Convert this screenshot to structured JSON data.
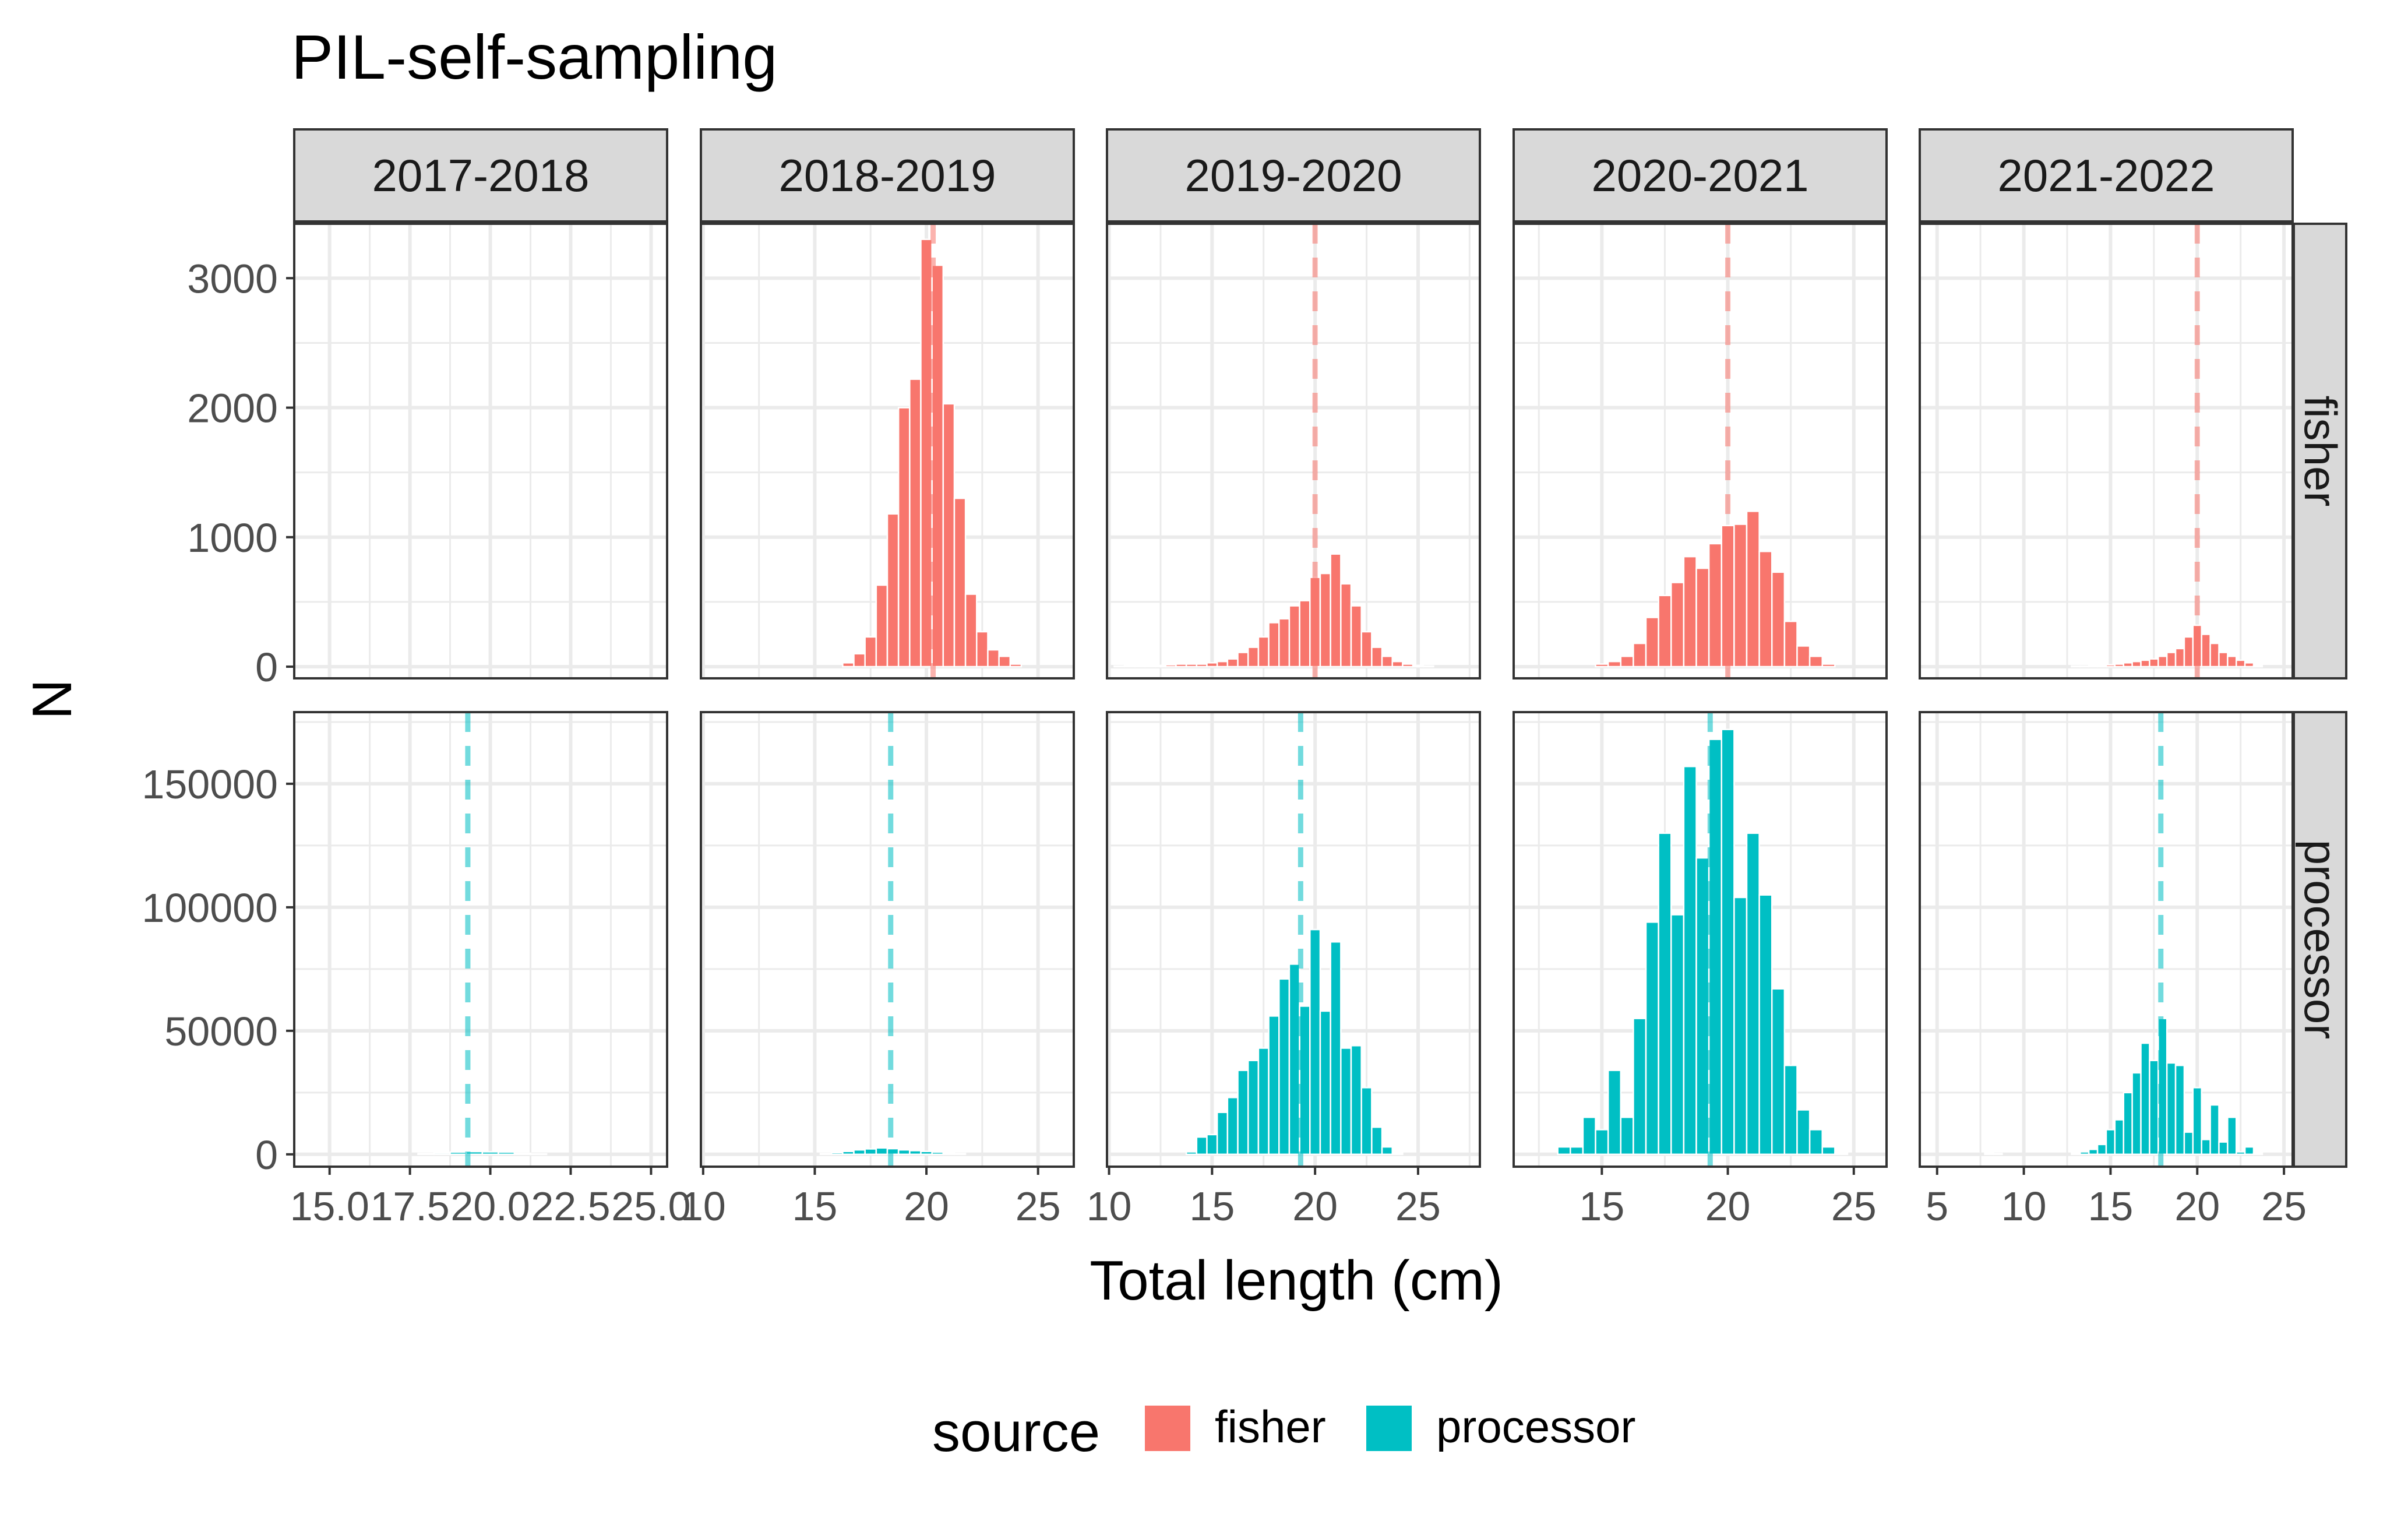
{
  "chart_data": {
    "type": "bar",
    "title": "PIL-self-sampling",
    "xlabel": "Total length (cm)",
    "ylabel": "N",
    "grid": true,
    "legend_position": "bottom",
    "legend": {
      "title": "source",
      "entries": [
        {
          "name": "fisher",
          "color": "#F8766D"
        },
        {
          "name": "processor",
          "color": "#00BFC4"
        }
      ]
    },
    "colors": {
      "fisher": "#F8766D",
      "processor": "#00BFC4",
      "strip_bg": "#D9D9D9",
      "grid": "#EBEBEB",
      "border": "#333333"
    },
    "rows": [
      {
        "label": "fisher",
        "ylim": [
          -90,
          3420
        ],
        "yticks": [
          0,
          1000,
          2000,
          3000
        ],
        "ytick_labels": [
          "0",
          "1000",
          "2000",
          "3000"
        ]
      },
      {
        "label": "processor",
        "ylim": [
          -5000,
          179000
        ],
        "yticks": [
          0,
          50000,
          100000,
          150000
        ],
        "ytick_labels": [
          "0",
          "50000",
          "100000",
          "150000"
        ]
      }
    ],
    "panels": [
      {
        "label": "2017-2018",
        "xlim": [
          13.9,
          25.5
        ],
        "xticks": [
          15,
          17.5,
          20,
          22.5,
          25
        ],
        "xtick_labels": [
          "15.0",
          "17.5",
          "20.0",
          "22.5",
          "25.0"
        ],
        "bin_width": 0.5,
        "fisher": {
          "mean": null,
          "bins": []
        },
        "processor": {
          "mean": 19.3,
          "bins": [
            {
              "x": 18.0,
              "n": 300
            },
            {
              "x": 18.5,
              "n": 600
            },
            {
              "x": 19.0,
              "n": 900
            },
            {
              "x": 19.5,
              "n": 1100
            },
            {
              "x": 20.0,
              "n": 1000
            },
            {
              "x": 20.5,
              "n": 900
            },
            {
              "x": 21.0,
              "n": 400
            },
            {
              "x": 21.5,
              "n": 200
            }
          ]
        }
      },
      {
        "label": "2018-2019",
        "xlim": [
          9.9,
          26.6
        ],
        "xticks": [
          10,
          15,
          20,
          25
        ],
        "xtick_labels": [
          "10",
          "15",
          "20",
          "25"
        ],
        "bin_width": 0.5,
        "fisher": {
          "mean": 20.3,
          "bins": [
            {
              "x": 16.5,
              "n": 30
            },
            {
              "x": 17.0,
              "n": 100
            },
            {
              "x": 17.5,
              "n": 230
            },
            {
              "x": 18.0,
              "n": 630
            },
            {
              "x": 18.5,
              "n": 1180
            },
            {
              "x": 19.0,
              "n": 2000
            },
            {
              "x": 19.5,
              "n": 2220
            },
            {
              "x": 20.0,
              "n": 3300
            },
            {
              "x": 20.5,
              "n": 3100
            },
            {
              "x": 21.0,
              "n": 2030
            },
            {
              "x": 21.5,
              "n": 1300
            },
            {
              "x": 22.0,
              "n": 560
            },
            {
              "x": 22.5,
              "n": 270
            },
            {
              "x": 23.0,
              "n": 130
            },
            {
              "x": 23.5,
              "n": 80
            },
            {
              "x": 24.0,
              "n": 20
            }
          ]
        },
        "processor": {
          "mean": 18.4,
          "bins": [
            {
              "x": 15.5,
              "n": 300
            },
            {
              "x": 16.0,
              "n": 700
            },
            {
              "x": 16.5,
              "n": 1200
            },
            {
              "x": 17.0,
              "n": 1800
            },
            {
              "x": 17.5,
              "n": 2200
            },
            {
              "x": 18.0,
              "n": 2600
            },
            {
              "x": 18.5,
              "n": 2300
            },
            {
              "x": 19.0,
              "n": 1800
            },
            {
              "x": 19.5,
              "n": 1500
            },
            {
              "x": 20.0,
              "n": 1200
            },
            {
              "x": 20.5,
              "n": 900
            },
            {
              "x": 21.0,
              "n": 500
            },
            {
              "x": 21.5,
              "n": 300
            }
          ]
        }
      },
      {
        "label": "2019-2020",
        "xlim": [
          9.9,
          28.0
        ],
        "xticks": [
          10,
          15,
          20,
          25
        ],
        "xtick_labels": [
          "10",
          "15",
          "20",
          "25"
        ],
        "bin_width": 0.5,
        "fisher": {
          "mean": 20.0,
          "bins": [
            {
              "x": 10.5,
              "n": 5
            },
            {
              "x": 11.0,
              "n": 10
            },
            {
              "x": 11.5,
              "n": 10
            },
            {
              "x": 12.0,
              "n": 10
            },
            {
              "x": 12.5,
              "n": 10
            },
            {
              "x": 13.0,
              "n": 15
            },
            {
              "x": 13.5,
              "n": 20
            },
            {
              "x": 14.0,
              "n": 20
            },
            {
              "x": 14.5,
              "n": 20
            },
            {
              "x": 15.0,
              "n": 30
            },
            {
              "x": 15.5,
              "n": 40
            },
            {
              "x": 16.0,
              "n": 60
            },
            {
              "x": 16.5,
              "n": 110
            },
            {
              "x": 17.0,
              "n": 150
            },
            {
              "x": 17.5,
              "n": 230
            },
            {
              "x": 18.0,
              "n": 340
            },
            {
              "x": 18.5,
              "n": 370
            },
            {
              "x": 19.0,
              "n": 470
            },
            {
              "x": 19.5,
              "n": 510
            },
            {
              "x": 20.0,
              "n": 690
            },
            {
              "x": 20.5,
              "n": 720
            },
            {
              "x": 21.0,
              "n": 870
            },
            {
              "x": 21.5,
              "n": 640
            },
            {
              "x": 22.0,
              "n": 470
            },
            {
              "x": 22.5,
              "n": 270
            },
            {
              "x": 23.0,
              "n": 150
            },
            {
              "x": 23.5,
              "n": 80
            },
            {
              "x": 24.0,
              "n": 40
            },
            {
              "x": 24.5,
              "n": 20
            },
            {
              "x": 25.0,
              "n": 10
            },
            {
              "x": 25.5,
              "n": 5
            }
          ]
        },
        "processor": {
          "mean": 19.3,
          "bins": [
            {
              "x": 14.0,
              "n": 1000
            },
            {
              "x": 14.5,
              "n": 7000
            },
            {
              "x": 15.0,
              "n": 8000
            },
            {
              "x": 15.5,
              "n": 17000
            },
            {
              "x": 16.0,
              "n": 23000
            },
            {
              "x": 16.5,
              "n": 34000
            },
            {
              "x": 17.0,
              "n": 38000
            },
            {
              "x": 17.5,
              "n": 43000
            },
            {
              "x": 18.0,
              "n": 56000
            },
            {
              "x": 18.5,
              "n": 71000
            },
            {
              "x": 19.0,
              "n": 77000
            },
            {
              "x": 19.5,
              "n": 60000
            },
            {
              "x": 20.0,
              "n": 91000
            },
            {
              "x": 20.5,
              "n": 58000
            },
            {
              "x": 21.0,
              "n": 86000
            },
            {
              "x": 21.5,
              "n": 43000
            },
            {
              "x": 22.0,
              "n": 44000
            },
            {
              "x": 22.5,
              "n": 27000
            },
            {
              "x": 23.0,
              "n": 11000
            },
            {
              "x": 23.5,
              "n": 3000
            },
            {
              "x": 24.0,
              "n": 500
            }
          ]
        }
      },
      {
        "label": "2020-2021",
        "xlim": [
          11.5,
          26.3
        ],
        "xticks": [
          15,
          20,
          25
        ],
        "xtick_labels": [
          "15",
          "20",
          "25"
        ],
        "bin_width": 0.5,
        "fisher": {
          "mean": 20.0,
          "bins": [
            {
              "x": 15.0,
              "n": 20
            },
            {
              "x": 15.5,
              "n": 40
            },
            {
              "x": 16.0,
              "n": 80
            },
            {
              "x": 16.5,
              "n": 180
            },
            {
              "x": 17.0,
              "n": 380
            },
            {
              "x": 17.5,
              "n": 550
            },
            {
              "x": 18.0,
              "n": 650
            },
            {
              "x": 18.5,
              "n": 850
            },
            {
              "x": 19.0,
              "n": 760
            },
            {
              "x": 19.5,
              "n": 950
            },
            {
              "x": 20.0,
              "n": 1090
            },
            {
              "x": 20.5,
              "n": 1100
            },
            {
              "x": 21.0,
              "n": 1200
            },
            {
              "x": 21.5,
              "n": 890
            },
            {
              "x": 22.0,
              "n": 730
            },
            {
              "x": 22.5,
              "n": 350
            },
            {
              "x": 23.0,
              "n": 160
            },
            {
              "x": 23.5,
              "n": 80
            },
            {
              "x": 24.0,
              "n": 20
            }
          ]
        },
        "processor": {
          "mean": 19.3,
          "bins": [
            {
              "x": 13.5,
              "n": 3000
            },
            {
              "x": 14.0,
              "n": 3000
            },
            {
              "x": 14.5,
              "n": 15000
            },
            {
              "x": 15.0,
              "n": 10000
            },
            {
              "x": 15.5,
              "n": 34000
            },
            {
              "x": 16.0,
              "n": 15000
            },
            {
              "x": 16.5,
              "n": 55000
            },
            {
              "x": 17.0,
              "n": 94000
            },
            {
              "x": 17.5,
              "n": 130000
            },
            {
              "x": 18.0,
              "n": 97000
            },
            {
              "x": 18.5,
              "n": 157000
            },
            {
              "x": 19.0,
              "n": 120000
            },
            {
              "x": 19.5,
              "n": 168000
            },
            {
              "x": 20.0,
              "n": 172000
            },
            {
              "x": 20.5,
              "n": 104000
            },
            {
              "x": 21.0,
              "n": 130000
            },
            {
              "x": 21.5,
              "n": 105000
            },
            {
              "x": 22.0,
              "n": 67000
            },
            {
              "x": 22.5,
              "n": 36000
            },
            {
              "x": 23.0,
              "n": 18000
            },
            {
              "x": 23.5,
              "n": 10000
            },
            {
              "x": 24.0,
              "n": 3000
            },
            {
              "x": 24.5,
              "n": 500
            }
          ]
        }
      },
      {
        "label": "2021-2022",
        "xlim": [
          4.0,
          25.5
        ],
        "xticks": [
          5,
          10,
          15,
          20,
          25
        ],
        "xtick_labels": [
          "5",
          "10",
          "15",
          "20",
          "25"
        ],
        "bin_width": 0.5,
        "fisher": {
          "mean": 20.0,
          "bins": [
            {
              "x": 13.0,
              "n": 5
            },
            {
              "x": 13.5,
              "n": 5
            },
            {
              "x": 14.0,
              "n": 10
            },
            {
              "x": 14.5,
              "n": 10
            },
            {
              "x": 15.0,
              "n": 15
            },
            {
              "x": 15.5,
              "n": 20
            },
            {
              "x": 16.0,
              "n": 30
            },
            {
              "x": 16.5,
              "n": 40
            },
            {
              "x": 17.0,
              "n": 50
            },
            {
              "x": 17.5,
              "n": 60
            },
            {
              "x": 18.0,
              "n": 80
            },
            {
              "x": 18.5,
              "n": 110
            },
            {
              "x": 19.0,
              "n": 140
            },
            {
              "x": 19.5,
              "n": 230
            },
            {
              "x": 20.0,
              "n": 320
            },
            {
              "x": 20.5,
              "n": 250
            },
            {
              "x": 21.0,
              "n": 180
            },
            {
              "x": 21.5,
              "n": 110
            },
            {
              "x": 22.0,
              "n": 80
            },
            {
              "x": 22.5,
              "n": 50
            },
            {
              "x": 23.0,
              "n": 30
            },
            {
              "x": 23.5,
              "n": 10
            }
          ]
        },
        "processor": {
          "mean": 17.9,
          "bins": [
            {
              "x": 8.0,
              "n": 500
            },
            {
              "x": 8.5,
              "n": 300
            },
            {
              "x": 13.0,
              "n": 500
            },
            {
              "x": 13.5,
              "n": 1000
            },
            {
              "x": 14.0,
              "n": 2000
            },
            {
              "x": 14.5,
              "n": 4000
            },
            {
              "x": 15.0,
              "n": 10000
            },
            {
              "x": 15.5,
              "n": 14000
            },
            {
              "x": 16.0,
              "n": 25000
            },
            {
              "x": 16.5,
              "n": 33000
            },
            {
              "x": 17.0,
              "n": 45000
            },
            {
              "x": 17.5,
              "n": 38000
            },
            {
              "x": 18.0,
              "n": 55000
            },
            {
              "x": 18.5,
              "n": 37000
            },
            {
              "x": 19.0,
              "n": 36000
            },
            {
              "x": 19.5,
              "n": 9000
            },
            {
              "x": 20.0,
              "n": 27000
            },
            {
              "x": 20.5,
              "n": 6000
            },
            {
              "x": 21.0,
              "n": 20000
            },
            {
              "x": 21.5,
              "n": 5000
            },
            {
              "x": 22.0,
              "n": 15000
            },
            {
              "x": 22.5,
              "n": 1000
            },
            {
              "x": 23.0,
              "n": 3000
            },
            {
              "x": 23.5,
              "n": 500
            }
          ]
        }
      }
    ]
  }
}
